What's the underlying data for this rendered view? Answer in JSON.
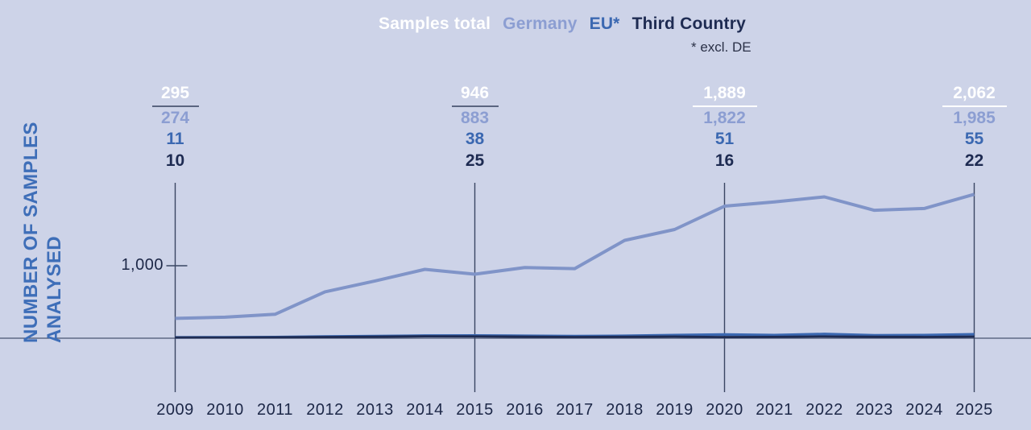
{
  "colors": {
    "background": "#cdd3e8",
    "axis_line": "#4a5571",
    "marker_line": "#3a4663",
    "year_label": "#1c2747",
    "ylabel_text": "#3e6eb8",
    "note_text": "#2b3147"
  },
  "legend": {
    "items": [
      {
        "label": "Samples total",
        "color": "#ffffff"
      },
      {
        "label": "Germany",
        "color": "#8c9ed2"
      },
      {
        "label": "EU*",
        "color": "#3b68b1"
      },
      {
        "label": "Third Country",
        "color": "#1e2b52"
      }
    ],
    "note": "* excl. DE"
  },
  "y_axis": {
    "title_line1": "NUMBER OF SAMPLES",
    "title_line2": "ANALYSED",
    "tick_label": "1,000",
    "tick_value": 1000
  },
  "chart_data": {
    "type": "line",
    "title": "",
    "xlabel": "",
    "ylabel": "NUMBER OF SAMPLES ANALYSED",
    "x": [
      2009,
      2010,
      2011,
      2012,
      2013,
      2014,
      2015,
      2016,
      2017,
      2018,
      2019,
      2020,
      2021,
      2022,
      2023,
      2024,
      2025
    ],
    "ylim": [
      0,
      2100
    ],
    "grid": false,
    "legend_position": "top",
    "series": [
      {
        "name": "Samples total",
        "color": "#ffffff",
        "plotted": false,
        "values": [
          295,
          null,
          null,
          null,
          null,
          null,
          946,
          null,
          null,
          null,
          null,
          1889,
          null,
          null,
          null,
          null,
          2062
        ]
      },
      {
        "name": "Germany",
        "color": "#8094c8",
        "plotted": true,
        "values": [
          274,
          290,
          330,
          640,
          790,
          950,
          883,
          975,
          960,
          1350,
          1500,
          1822,
          1880,
          1950,
          1765,
          1790,
          1985
        ]
      },
      {
        "name": "EU*",
        "color": "#3b68b1",
        "plotted": true,
        "values": [
          11,
          13,
          16,
          24,
          30,
          36,
          38,
          34,
          30,
          33,
          44,
          51,
          44,
          58,
          40,
          44,
          55
        ]
      },
      {
        "name": "Third Country",
        "color": "#1e2b52",
        "plotted": true,
        "values": [
          10,
          10,
          12,
          16,
          20,
          26,
          25,
          20,
          17,
          19,
          22,
          16,
          18,
          24,
          19,
          17,
          22
        ]
      }
    ],
    "marker_years": [
      2009,
      2015,
      2020,
      2025
    ],
    "annotations": [
      {
        "year": 2009,
        "total": "295",
        "germany": "274",
        "eu": "11",
        "third": "10",
        "underline_color": "#5a6580",
        "underline_width": 58
      },
      {
        "year": 2015,
        "total": "946",
        "germany": "883",
        "eu": "38",
        "third": "25",
        "underline_color": "#5a6580",
        "underline_width": 58
      },
      {
        "year": 2020,
        "total": "1,889",
        "germany": "1,822",
        "eu": "51",
        "third": "16",
        "underline_color": "#ffffff",
        "underline_width": 80
      },
      {
        "year": 2025,
        "total": "2,062",
        "germany": "1,985",
        "eu": "55",
        "third": "22",
        "underline_color": "#ffffff",
        "underline_width": 80
      }
    ]
  }
}
